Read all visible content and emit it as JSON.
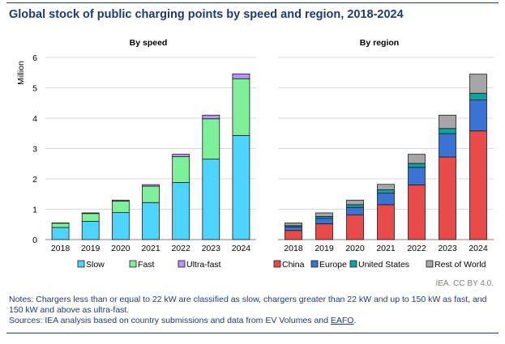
{
  "title": "Global stock of public charging points by speed and region, 2018-2024",
  "credit": "IEA. CC BY 4.0.",
  "notes": {
    "line1": "Notes: Chargers less than or equal to 22 kW are classified as slow, chargers greater than 22 kW and up to 150 kW as fast, and 150 kW and above as ultra-fast.",
    "sources_prefix": "Sources: IEA analysis based on country submissions and data from EV Volumes and ",
    "sources_link": "EAFO",
    "sources_suffix": "."
  },
  "chart_data": [
    {
      "type": "bar",
      "stacked": true,
      "title": "By speed",
      "ylabel": "Million",
      "ylim": [
        0,
        6
      ],
      "yticks": [
        0,
        1,
        2,
        3,
        4,
        5,
        6
      ],
      "grid": true,
      "legend_position": "bottom",
      "categories": [
        "2018",
        "2019",
        "2020",
        "2021",
        "2022",
        "2023",
        "2024"
      ],
      "series": [
        {
          "name": "Slow",
          "color": "#4dd4ff",
          "values": [
            0.4,
            0.6,
            0.89,
            1.22,
            1.88,
            2.65,
            3.43
          ]
        },
        {
          "name": "Fast",
          "color": "#7ff09a",
          "values": [
            0.14,
            0.26,
            0.38,
            0.54,
            0.85,
            1.33,
            1.87
          ]
        },
        {
          "name": "Ultra-fast",
          "color": "#b794f6",
          "values": [
            0.01,
            0.02,
            0.03,
            0.05,
            0.08,
            0.12,
            0.16
          ]
        }
      ]
    },
    {
      "type": "bar",
      "stacked": true,
      "title": "By region",
      "ylim": [
        0,
        6
      ],
      "grid": true,
      "legend_position": "bottom",
      "categories": [
        "2018",
        "2019",
        "2020",
        "2021",
        "2022",
        "2023",
        "2024"
      ],
      "series": [
        {
          "name": "China",
          "color": "#e94b4b",
          "values": [
            0.3,
            0.52,
            0.81,
            1.15,
            1.8,
            2.72,
            3.58
          ]
        },
        {
          "name": "Europe",
          "color": "#3a73d4",
          "values": [
            0.12,
            0.18,
            0.25,
            0.38,
            0.58,
            0.77,
            1.02
          ]
        },
        {
          "name": "United States",
          "color": "#0aa39e",
          "values": [
            0.04,
            0.06,
            0.09,
            0.11,
            0.13,
            0.17,
            0.22
          ]
        },
        {
          "name": "Rest of World",
          "color": "#a6a6a6",
          "values": [
            0.09,
            0.12,
            0.15,
            0.18,
            0.3,
            0.44,
            0.63
          ]
        }
      ]
    }
  ]
}
